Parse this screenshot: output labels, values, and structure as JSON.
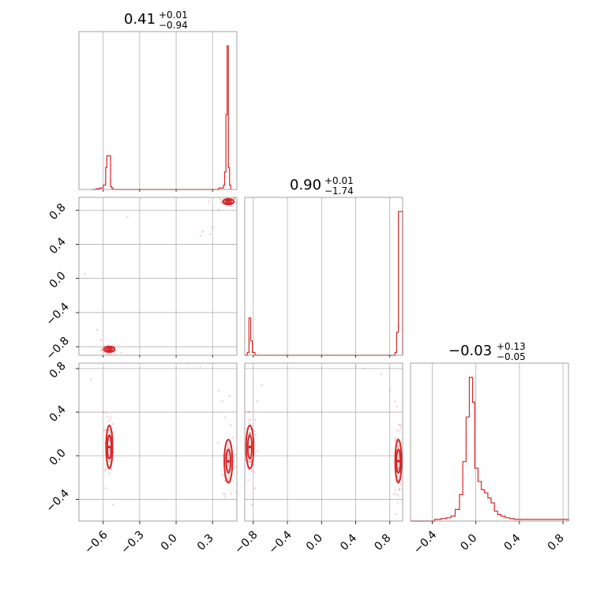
{
  "chart_data": {
    "type": "corner",
    "color": "#d62728",
    "grid": true,
    "params": [
      {
        "title": {
          "value": "0.41",
          "plus": "+0.01",
          "minus": "−0.94"
        },
        "range": [
          -0.8,
          0.5
        ],
        "ticks": [
          -0.6,
          -0.3,
          0.0,
          0.3
        ],
        "tick_labels": [
          "−0.6",
          "−0.3",
          "0.0",
          "0.3"
        ],
        "hist_x": [
          -0.69,
          -0.66,
          -0.63,
          -0.6,
          -0.58,
          -0.57,
          -0.56,
          -0.54,
          -0.53,
          -0.52,
          0.26,
          0.35,
          0.39,
          0.4,
          0.41,
          0.42,
          0.43,
          0.44,
          0.45
        ],
        "hist_y": [
          0.0,
          0.005,
          0.01,
          0.03,
          0.15,
          0.23,
          0.23,
          0.02,
          0.01,
          0.0,
          0.0,
          0.01,
          0.03,
          0.12,
          0.51,
          0.98,
          0.15,
          0.03,
          0.0
        ]
      },
      {
        "title": {
          "value": "0.90",
          "plus": "+0.01",
          "minus": "−1.74"
        },
        "range": [
          -0.9,
          0.95
        ],
        "ticks": [
          -0.8,
          -0.4,
          0.0,
          0.4,
          0.8
        ],
        "tick_labels": [
          "−0.8",
          "−0.4",
          "0.0",
          "0.4",
          "0.8"
        ],
        "hist_x": [
          -0.9,
          -0.87,
          -0.85,
          -0.83,
          -0.81,
          -0.78,
          0.82,
          0.86,
          0.88,
          0.9,
          0.92,
          0.95
        ],
        "hist_y": [
          0.0,
          0.02,
          0.26,
          0.1,
          0.02,
          0.0,
          0.0,
          0.02,
          0.16,
          1.0,
          1.0,
          0.0
        ]
      },
      {
        "title": {
          "value": "−0.03",
          "plus": "+0.13",
          "minus": "−0.05"
        },
        "range": [
          -0.6,
          0.85
        ],
        "ticks": [
          -0.4,
          0.0,
          0.4,
          0.8
        ],
        "tick_labels": [
          "−0.4",
          "0.0",
          "0.4",
          "0.8"
        ],
        "hist_x": [
          -0.6,
          -0.38,
          -0.32,
          -0.27,
          -0.23,
          -0.19,
          -0.15,
          -0.12,
          -0.09,
          -0.06,
          -0.03,
          -0.01,
          0.02,
          0.05,
          0.08,
          0.11,
          0.14,
          0.17,
          0.2,
          0.23,
          0.27,
          0.31,
          0.35,
          0.45,
          0.6,
          0.85
        ],
        "hist_y": [
          0.0,
          0.01,
          0.015,
          0.02,
          0.03,
          0.07,
          0.16,
          0.36,
          0.63,
          0.87,
          0.72,
          0.32,
          0.24,
          0.19,
          0.17,
          0.14,
          0.11,
          0.06,
          0.04,
          0.03,
          0.02,
          0.015,
          0.01,
          0.01,
          0.01,
          0.01
        ]
      }
    ],
    "pairs": [
      {
        "row": 1,
        "col": 0,
        "modes": [
          {
            "x": -0.55,
            "y": -0.83,
            "sx": 0.02,
            "sy": 0.015,
            "n": 40
          },
          {
            "x": 0.43,
            "y": 0.9,
            "sx": 0.02,
            "sy": 0.015,
            "n": 40
          }
        ],
        "scatter": [
          [
            0.28,
            0.52
          ],
          [
            0.22,
            0.55
          ],
          [
            0.3,
            0.6
          ],
          [
            -0.4,
            0.72
          ],
          [
            -0.65,
            -0.6
          ],
          [
            -0.58,
            -0.8
          ],
          [
            -0.62,
            -0.72
          ],
          [
            -0.45,
            -0.87
          ],
          [
            0.35,
            0.8
          ],
          [
            0.2,
            0.5
          ],
          [
            -0.75,
            0.05
          ],
          [
            0.27,
            0.9
          ]
        ]
      },
      {
        "row": 2,
        "col": 0,
        "modes": [
          {
            "x": -0.55,
            "y": 0.08,
            "sx": 0.012,
            "sy": 0.09,
            "n": 60
          },
          {
            "x": 0.43,
            "y": -0.05,
            "sx": 0.015,
            "sy": 0.09,
            "n": 60
          }
        ],
        "scatter": [
          [
            -0.6,
            0.4
          ],
          [
            -0.52,
            -0.45
          ],
          [
            -0.58,
            -0.3
          ],
          [
            0.38,
            0.5
          ],
          [
            0.4,
            0.35
          ],
          [
            0.44,
            0.55
          ],
          [
            0.39,
            -0.35
          ],
          [
            0.35,
            0.6
          ],
          [
            -0.54,
            0.35
          ],
          [
            0.1,
            0.85
          ],
          [
            0.2,
            0.82
          ],
          [
            -0.7,
            0.7
          ]
        ]
      },
      {
        "row": 2,
        "col": 1,
        "modes": [
          {
            "x": -0.84,
            "y": 0.08,
            "sx": 0.02,
            "sy": 0.09,
            "n": 60
          },
          {
            "x": 0.9,
            "y": -0.05,
            "sx": 0.015,
            "sy": 0.09,
            "n": 60
          }
        ],
        "scatter": [
          [
            -0.86,
            0.4
          ],
          [
            -0.82,
            -0.45
          ],
          [
            -0.78,
            -0.3
          ],
          [
            0.86,
            0.5
          ],
          [
            0.8,
            0.6
          ],
          [
            0.88,
            0.45
          ],
          [
            0.85,
            -0.35
          ],
          [
            0.7,
            0.75
          ],
          [
            -0.75,
            0.5
          ],
          [
            0.4,
            0.82
          ],
          [
            0.5,
            0.8
          ],
          [
            -0.7,
            0.65
          ]
        ]
      }
    ]
  }
}
